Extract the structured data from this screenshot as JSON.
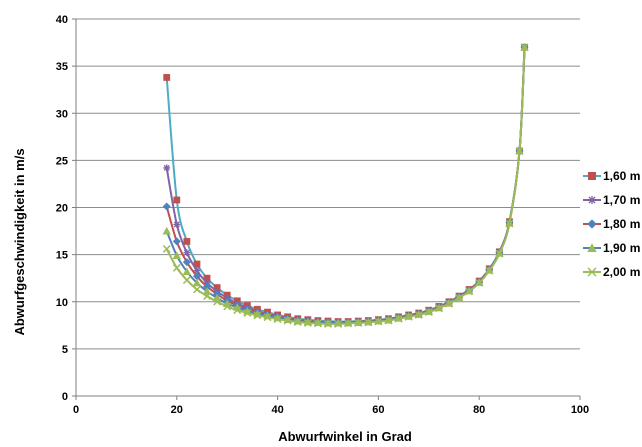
{
  "chart_data": {
    "type": "line",
    "xlabel": "Abwurfwinkel in Grad",
    "ylabel": "Abwurfgeschwindigkeit in m/s",
    "xlim": [
      0,
      100
    ],
    "ylim": [
      0,
      40
    ],
    "xticks": [
      0,
      20,
      40,
      60,
      80,
      100
    ],
    "yticks": [
      0,
      5,
      10,
      15,
      20,
      25,
      30,
      35,
      40
    ],
    "grid": "horizontal",
    "legend_position": "right",
    "x": [
      18,
      20,
      22,
      24,
      26,
      28,
      30,
      32,
      34,
      36,
      38,
      40,
      42,
      44,
      46,
      48,
      50,
      52,
      54,
      56,
      58,
      60,
      62,
      64,
      66,
      68,
      70,
      72,
      74,
      76,
      78,
      80,
      82,
      84,
      86,
      88,
      89
    ],
    "series": [
      {
        "name": "1,60 m",
        "color": "#4bacc6",
        "marker_color": "#c0504d",
        "marker": "square",
        "values": [
          33.8,
          20.8,
          16.4,
          14.0,
          12.5,
          11.5,
          10.7,
          10.1,
          9.6,
          9.2,
          8.9,
          8.6,
          8.4,
          8.2,
          8.1,
          8.0,
          7.95,
          7.9,
          7.9,
          7.95,
          8.0,
          8.1,
          8.2,
          8.4,
          8.6,
          8.8,
          9.1,
          9.5,
          10.0,
          10.6,
          11.3,
          12.2,
          13.5,
          15.3,
          18.5,
          26.0,
          37.0
        ]
      },
      {
        "name": "1,70 m",
        "color": "#8064a2",
        "marker_color": "#8064a2",
        "marker": "star",
        "values": [
          24.2,
          18.2,
          15.2,
          13.3,
          12.0,
          11.1,
          10.4,
          9.8,
          9.4,
          9.0,
          8.7,
          8.5,
          8.3,
          8.1,
          8.0,
          7.9,
          7.85,
          7.85,
          7.85,
          7.9,
          7.95,
          8.05,
          8.15,
          8.35,
          8.55,
          8.75,
          9.05,
          9.45,
          9.95,
          10.55,
          11.25,
          12.15,
          13.45,
          15.25,
          18.45,
          26.0,
          37.0
        ]
      },
      {
        "name": "1,80 m",
        "color": "#c0504d",
        "marker_color": "#4f81bd",
        "marker": "diamond",
        "values": [
          20.1,
          16.4,
          14.2,
          12.7,
          11.6,
          10.8,
          10.1,
          9.6,
          9.2,
          8.9,
          8.6,
          8.4,
          8.2,
          8.05,
          7.95,
          7.85,
          7.8,
          7.8,
          7.8,
          7.85,
          7.9,
          8.0,
          8.1,
          8.3,
          8.5,
          8.7,
          9.0,
          9.4,
          9.9,
          10.5,
          11.2,
          12.1,
          13.4,
          15.2,
          18.4,
          26.0,
          37.0
        ]
      },
      {
        "name": "1,90 m",
        "color": "#4f81bd",
        "marker_color": "#9bbb59",
        "marker": "triangle",
        "values": [
          17.5,
          14.9,
          13.2,
          12.0,
          11.1,
          10.4,
          9.8,
          9.4,
          9.0,
          8.7,
          8.5,
          8.3,
          8.1,
          7.95,
          7.85,
          7.8,
          7.75,
          7.75,
          7.75,
          7.8,
          7.85,
          7.95,
          8.05,
          8.25,
          8.45,
          8.65,
          8.95,
          9.35,
          9.85,
          10.45,
          11.15,
          12.05,
          13.35,
          15.15,
          18.35,
          26.0,
          37.0
        ]
      },
      {
        "name": "2,00 m",
        "color": "#9bbb59",
        "marker_color": "#9bbb59",
        "marker": "cross",
        "values": [
          15.6,
          13.6,
          12.3,
          11.3,
          10.6,
          10.0,
          9.5,
          9.1,
          8.8,
          8.55,
          8.35,
          8.15,
          8.0,
          7.85,
          7.75,
          7.7,
          7.65,
          7.65,
          7.7,
          7.75,
          7.8,
          7.9,
          8.0,
          8.2,
          8.4,
          8.6,
          8.9,
          9.3,
          9.8,
          10.4,
          11.1,
          12.0,
          13.3,
          15.1,
          18.3,
          26.0,
          37.0
        ]
      }
    ]
  }
}
